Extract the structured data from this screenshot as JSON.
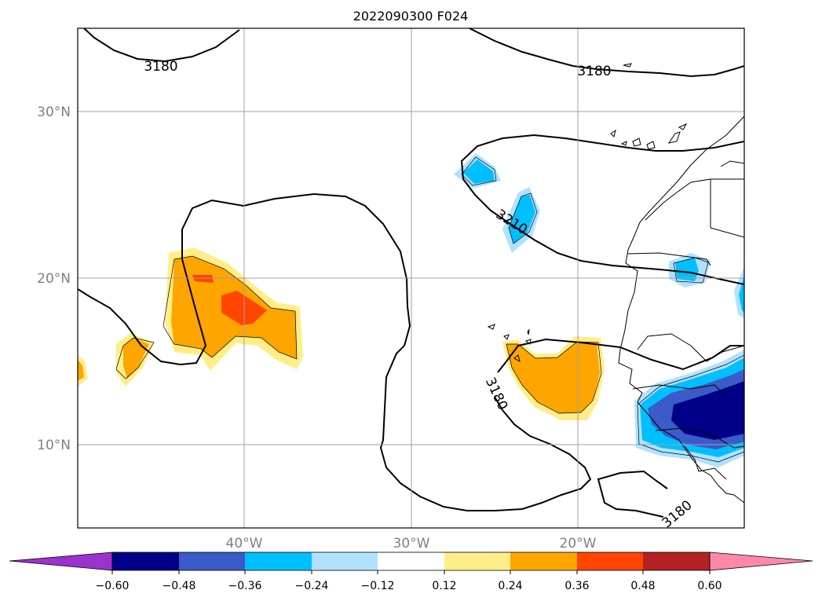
{
  "title": "2022090300 F024",
  "axes": {
    "y_ticks": [
      {
        "label": "30°N",
        "lat": 30
      },
      {
        "label": "20°N",
        "lat": 20
      },
      {
        "label": "10°N",
        "lat": 10
      }
    ],
    "x_ticks": [
      {
        "label": "40°W",
        "lon": -40
      },
      {
        "label": "30°W",
        "lon": -30
      },
      {
        "label": "20°W",
        "lon": -20
      }
    ],
    "lon_range": [
      -50,
      -10
    ],
    "lat_range": [
      5,
      35
    ],
    "grid": true,
    "tick_color": "#808080"
  },
  "contour_labels": [
    {
      "text": "3180",
      "lon": -45.1,
      "lat": 32.0
    },
    {
      "text": "3180",
      "lon": -20.1,
      "lat": 31.7
    },
    {
      "text": "3210",
      "lon": -24.2,
      "lat": 24.0
    },
    {
      "text": "3180",
      "lon": -25.6,
      "lat": 11.7
    },
    {
      "text": "3180",
      "lon": -13.4,
      "lat": 6.0
    }
  ],
  "colorbar": {
    "colors": [
      "#9933cc",
      "#000088",
      "#3a5bc8",
      "#00bfff",
      "#b0e2ff",
      "#ffffff",
      "#ffee88",
      "#ffa500",
      "#ff4500",
      "#b22222",
      "#ff88aa"
    ],
    "tick_labels": [
      "−0.60",
      "−0.48",
      "−0.36",
      "−0.24",
      "−0.12",
      "0.12",
      "0.24",
      "0.36",
      "0.48",
      "0.60"
    ],
    "extend": "both"
  }
}
